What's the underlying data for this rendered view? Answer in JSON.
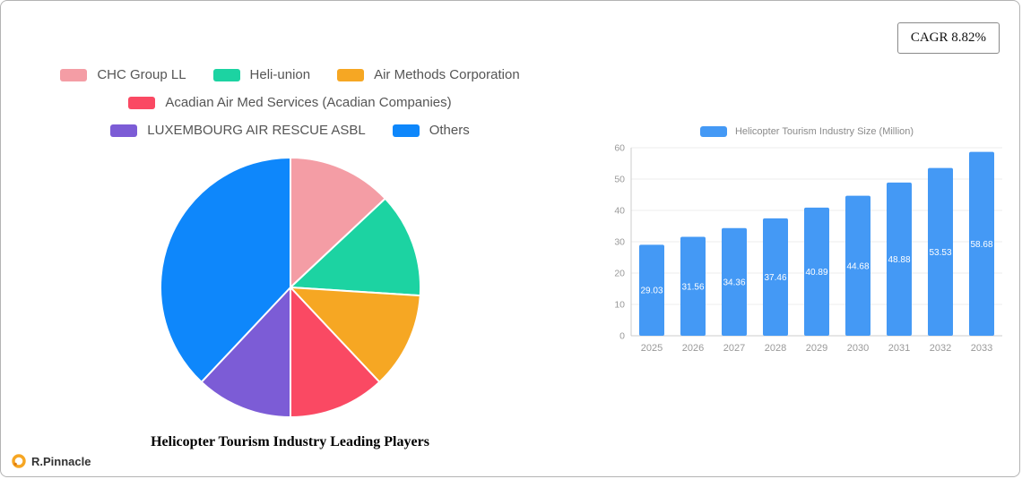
{
  "page": {
    "cagr_label": "CAGR 8.82%",
    "brand": "R.Pinnacle"
  },
  "chart_data": [
    {
      "type": "pie",
      "title": "Helicopter Tourism Industry Leading Players",
      "labels": [
        "CHC Group LL",
        "Heli-union",
        "Air Methods Corporation",
        "Acadian Air Med Services (Acadian Companies)",
        "LUXEMBOURG AIR RESCUE ASBL",
        "Others"
      ],
      "values": [
        13,
        13,
        12,
        12,
        12,
        38
      ],
      "colors": [
        "#F49DA5",
        "#1CD3A2",
        "#F6A723",
        "#FA4963",
        "#7C5CD6",
        "#0E87FB"
      ],
      "legend_position": "top"
    },
    {
      "type": "bar",
      "legend": "Helicopter Tourism Industry Size (Million)",
      "categories": [
        "2025",
        "2026",
        "2027",
        "2028",
        "2029",
        "2030",
        "2031",
        "2032",
        "2033"
      ],
      "values": [
        29.03,
        31.56,
        34.36,
        37.46,
        40.89,
        44.68,
        48.88,
        53.53,
        58.68
      ],
      "ylim": [
        0,
        60
      ],
      "yticks": [
        0,
        10,
        20,
        30,
        40,
        50,
        60
      ],
      "bar_color": "#4499F5",
      "value_label_color": "#ffffff",
      "grid": true,
      "legend_position": "top"
    }
  ]
}
